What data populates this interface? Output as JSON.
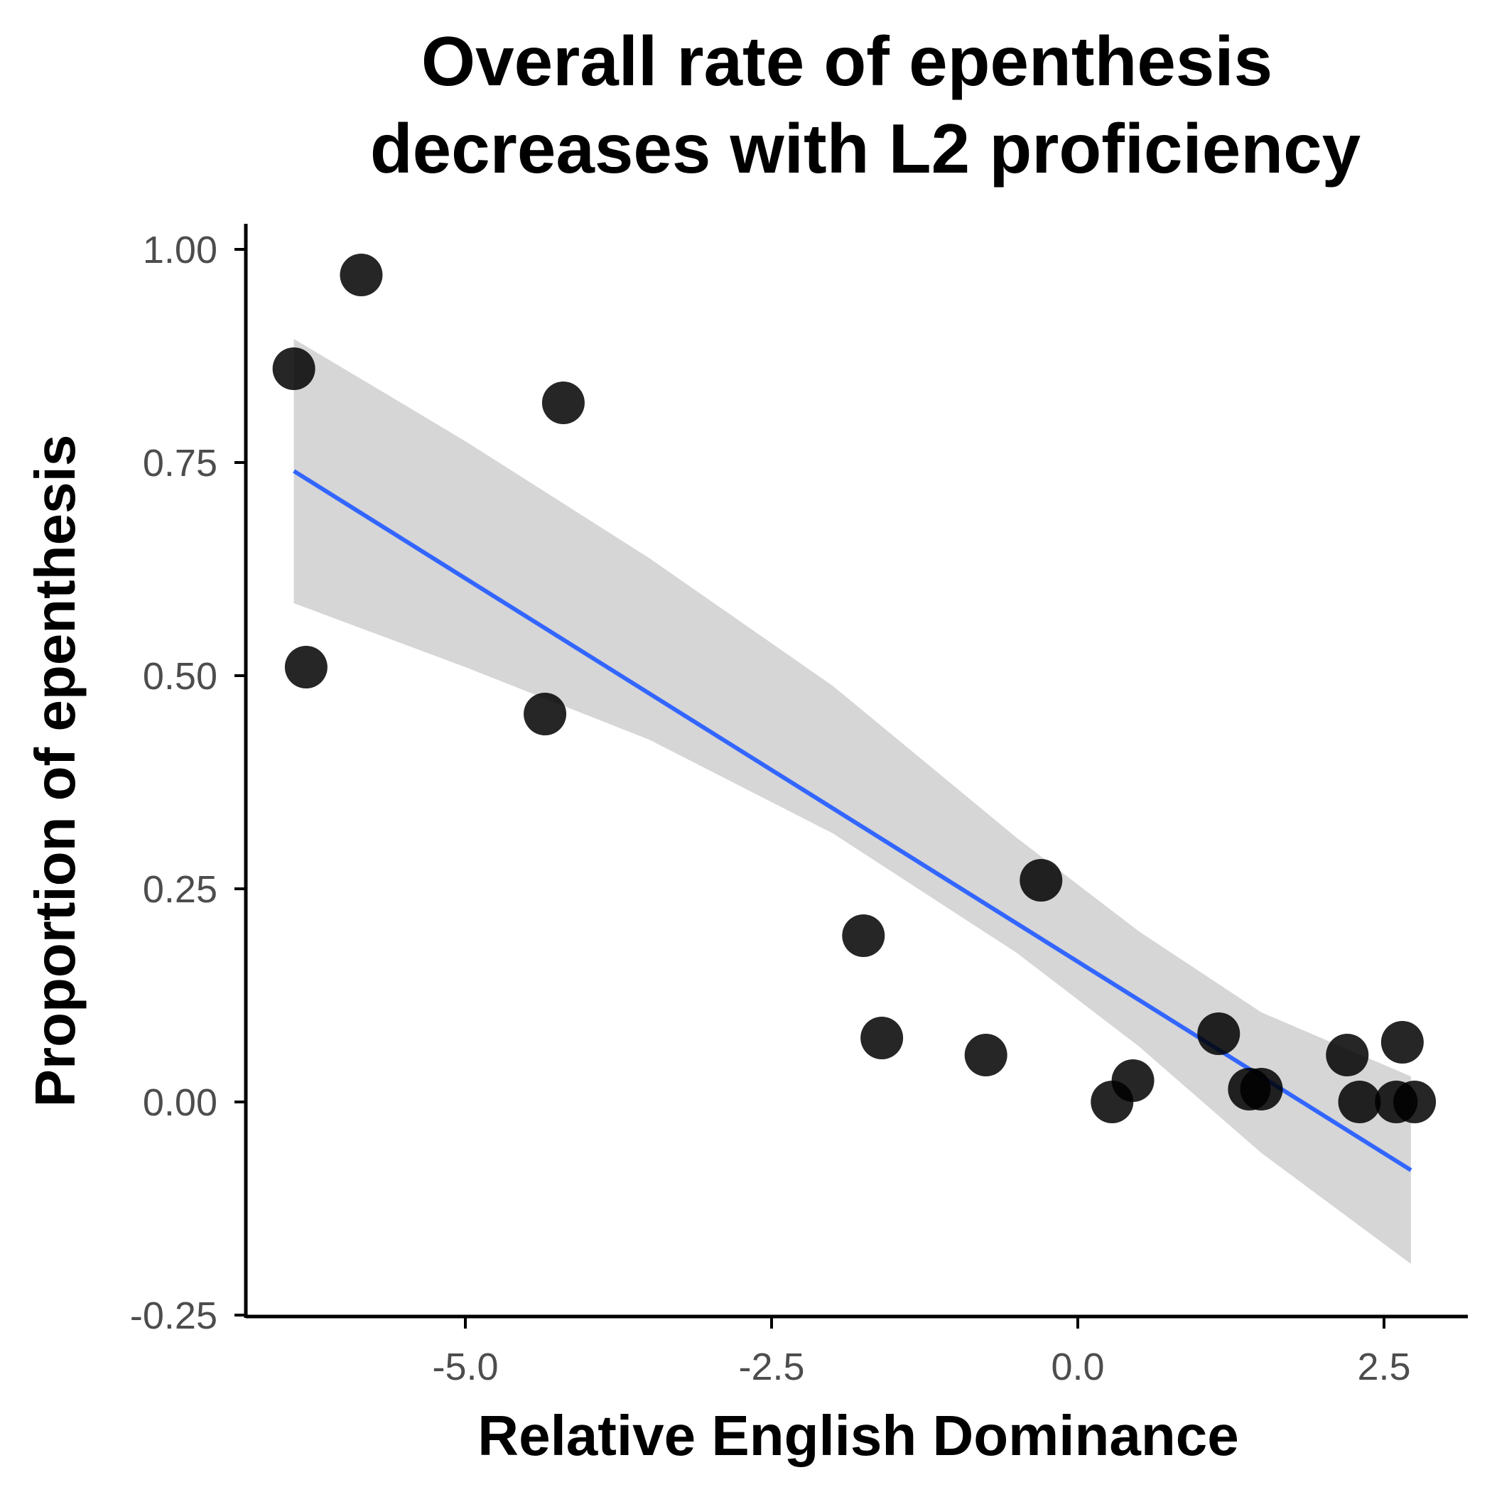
{
  "chart_data": {
    "type": "scatter",
    "title_lines": [
      "Overall rate of epenthesis",
      "decreases with L2 proficiency"
    ],
    "xlabel": "Relative English Dominance",
    "ylabel": "Proportion of epenthesis",
    "xlim": [
      -8.0,
      3.15
    ],
    "ylim": [
      -0.25,
      1.03
    ],
    "x_ticks": [
      {
        "value": -5.0,
        "label": "-5.0"
      },
      {
        "value": -2.5,
        "label": "-2.5"
      },
      {
        "value": 0.0,
        "label": "0.0"
      },
      {
        "value": 2.5,
        "label": "2.5"
      }
    ],
    "y_ticks": [
      {
        "value": -0.25,
        "label": "-0.25"
      },
      {
        "value": 0.0,
        "label": "0.00"
      },
      {
        "value": 0.25,
        "label": "0.25"
      },
      {
        "value": 0.5,
        "label": "0.50"
      },
      {
        "value": 0.75,
        "label": "0.75"
      },
      {
        "value": 1.0,
        "label": "1.00"
      }
    ],
    "points": [
      {
        "x": -6.4,
        "y": 0.86
      },
      {
        "x": -6.3,
        "y": 0.51
      },
      {
        "x": -5.85,
        "y": 0.97
      },
      {
        "x": -4.2,
        "y": 0.82
      },
      {
        "x": -4.35,
        "y": 0.455
      },
      {
        "x": -1.75,
        "y": 0.195
      },
      {
        "x": -1.6,
        "y": 0.075
      },
      {
        "x": -0.75,
        "y": 0.055
      },
      {
        "x": -0.3,
        "y": 0.26
      },
      {
        "x": 0.28,
        "y": 0.0
      },
      {
        "x": 0.45,
        "y": 0.025
      },
      {
        "x": 1.15,
        "y": 0.08
      },
      {
        "x": 1.4,
        "y": 0.015
      },
      {
        "x": 1.5,
        "y": 0.015
      },
      {
        "x": 2.2,
        "y": 0.055
      },
      {
        "x": 2.3,
        "y": 0.0
      },
      {
        "x": 2.6,
        "y": 0.0
      },
      {
        "x": 2.65,
        "y": 0.07
      },
      {
        "x": 2.75,
        "y": 0.0
      }
    ],
    "trend_line": {
      "x": [
        -6.4,
        2.72
      ],
      "y": [
        0.74,
        -0.08
      ]
    },
    "confidence_band": {
      "x": [
        -6.4,
        -5.0,
        -3.5,
        -2.0,
        -0.5,
        0.5,
        1.5,
        2.72
      ],
      "upper": [
        0.895,
        0.775,
        0.638,
        0.488,
        0.31,
        0.2,
        0.105,
        0.03
      ],
      "lower": [
        0.585,
        0.51,
        0.425,
        0.315,
        0.175,
        0.065,
        -0.06,
        -0.19
      ]
    },
    "colors": {
      "points": "#000000",
      "line": "#3366ff",
      "band": "#d6d6d6",
      "axis": "#000000",
      "tick_labels": "#4d4d4d"
    },
    "grid": false
  }
}
